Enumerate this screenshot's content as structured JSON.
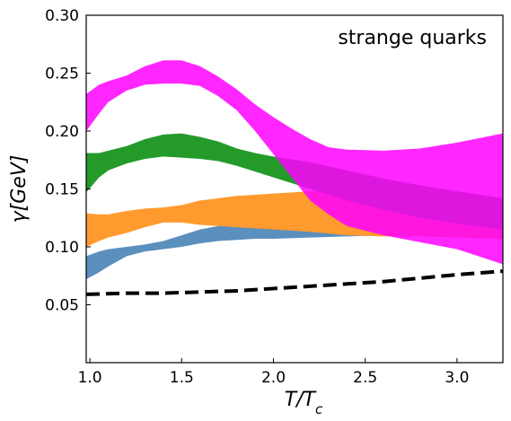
{
  "chart_data": {
    "type": "area",
    "title": "",
    "xlabel": "T/T",
    "xlabel_sub": "c",
    "ylabel": "γ[GeV]",
    "annotation": "strange quarks",
    "annotation_position": "top-right",
    "xlim": [
      0.98,
      3.25
    ],
    "ylim": [
      0.0,
      0.3
    ],
    "x_ticks": [
      1.0,
      1.5,
      2.0,
      2.5,
      3.0
    ],
    "x_tick_labels": [
      "1.0",
      "1.5",
      "2.0",
      "2.5",
      "3.0"
    ],
    "y_ticks": [
      0.05,
      0.1,
      0.15,
      0.2,
      0.25,
      0.3
    ],
    "y_tick_labels": [
      "0.05",
      "0.10",
      "0.15",
      "0.20",
      "0.25",
      "0.30"
    ],
    "grid": false,
    "legend": "none",
    "bands": [
      {
        "color": "#5b8fbd",
        "x": [
          0.98,
          1.05,
          1.1,
          1.2,
          1.3,
          1.4,
          1.5,
          1.6,
          1.7,
          1.8,
          1.9,
          2.0,
          2.2,
          2.4,
          2.6,
          2.8,
          3.0,
          3.25
        ],
        "lower": [
          0.072,
          0.078,
          0.083,
          0.092,
          0.096,
          0.098,
          0.1,
          0.103,
          0.105,
          0.106,
          0.107,
          0.107,
          0.108,
          0.109,
          0.11,
          0.111,
          0.113,
          0.115
        ],
        "upper": [
          0.092,
          0.096,
          0.098,
          0.1,
          0.102,
          0.105,
          0.11,
          0.115,
          0.118,
          0.12,
          0.122,
          0.124,
          0.126,
          0.128,
          0.129,
          0.128,
          0.127,
          0.126
        ]
      },
      {
        "color": "#ff9a2e",
        "x": [
          0.98,
          1.05,
          1.1,
          1.2,
          1.3,
          1.4,
          1.5,
          1.6,
          1.7,
          1.8,
          1.9,
          2.0,
          2.2,
          2.4,
          2.6,
          2.8,
          3.0,
          3.25
        ],
        "lower": [
          0.1,
          0.105,
          0.108,
          0.112,
          0.117,
          0.121,
          0.121,
          0.119,
          0.118,
          0.117,
          0.116,
          0.115,
          0.113,
          0.11,
          0.109,
          0.109,
          0.108,
          0.107
        ],
        "upper": [
          0.129,
          0.128,
          0.128,
          0.131,
          0.133,
          0.134,
          0.136,
          0.14,
          0.142,
          0.144,
          0.145,
          0.146,
          0.148,
          0.149,
          0.148,
          0.146,
          0.144,
          0.142
        ]
      },
      {
        "color": "#239a2a",
        "x": [
          0.98,
          1.05,
          1.1,
          1.2,
          1.3,
          1.4,
          1.5,
          1.6,
          1.7,
          1.8,
          1.9,
          2.0,
          2.2,
          2.4,
          2.6,
          2.8,
          3.0,
          3.25
        ],
        "lower": [
          0.147,
          0.16,
          0.166,
          0.172,
          0.176,
          0.178,
          0.177,
          0.176,
          0.174,
          0.17,
          0.165,
          0.16,
          0.15,
          0.14,
          0.132,
          0.125,
          0.12,
          0.115
        ],
        "upper": [
          0.181,
          0.181,
          0.183,
          0.187,
          0.193,
          0.197,
          0.198,
          0.195,
          0.191,
          0.185,
          0.181,
          0.178,
          0.173,
          0.166,
          0.159,
          0.153,
          0.148,
          0.142
        ]
      },
      {
        "color": "#ff00ff",
        "opacity": 0.85,
        "x": [
          0.98,
          1.05,
          1.1,
          1.2,
          1.3,
          1.4,
          1.5,
          1.6,
          1.7,
          1.8,
          1.9,
          2.0,
          2.1,
          2.2,
          2.3,
          2.4,
          2.6,
          2.8,
          3.0,
          3.25
        ],
        "lower": [
          0.2,
          0.215,
          0.225,
          0.235,
          0.24,
          0.241,
          0.241,
          0.239,
          0.23,
          0.218,
          0.2,
          0.18,
          0.16,
          0.14,
          0.128,
          0.118,
          0.11,
          0.104,
          0.098,
          0.085
        ],
        "upper": [
          0.232,
          0.24,
          0.243,
          0.248,
          0.256,
          0.261,
          0.261,
          0.256,
          0.247,
          0.236,
          0.223,
          0.212,
          0.202,
          0.193,
          0.186,
          0.184,
          0.183,
          0.185,
          0.19,
          0.198
        ]
      }
    ],
    "series": [
      {
        "style": "dashed",
        "color": "#000000",
        "x": [
          0.98,
          1.2,
          1.4,
          1.6,
          1.8,
          2.0,
          2.2,
          2.4,
          2.6,
          2.8,
          3.0,
          3.25
        ],
        "y": [
          0.059,
          0.06,
          0.06,
          0.061,
          0.062,
          0.064,
          0.066,
          0.068,
          0.07,
          0.073,
          0.076,
          0.079
        ]
      }
    ]
  }
}
